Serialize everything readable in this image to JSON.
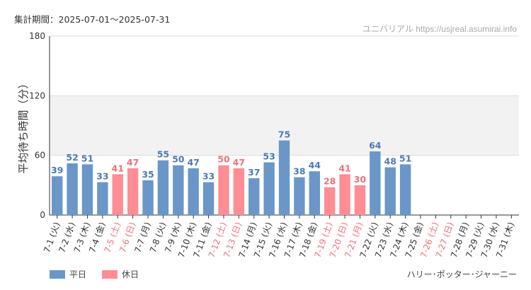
{
  "header": {
    "period_label": "集計期間：2025-07-01～2025-07-31",
    "credit": "ユニバリアル https://usjreal.asumirai.info"
  },
  "footer": {
    "attraction": "ハリー･ポッター･ジャーニー"
  },
  "colors": {
    "weekday": "#6a97c7",
    "holiday": "#ff8d94",
    "weekday_text": "#4a7bb5",
    "holiday_text": "#f07078",
    "band": "#f2f2f2"
  },
  "chart_data": {
    "type": "bar",
    "ylabel": "平均待ち時間（分）",
    "ylim": [
      0,
      180
    ],
    "yticks": [
      0,
      60,
      120,
      180
    ],
    "shaded_band": [
      60,
      120
    ],
    "legend": [
      {
        "label": "平日",
        "kind": "weekday"
      },
      {
        "label": "休日",
        "kind": "holiday"
      }
    ],
    "categories": [
      {
        "label": "7-1 (火)",
        "value": 39,
        "holiday": false
      },
      {
        "label": "7-2 (水)",
        "value": 52,
        "holiday": false
      },
      {
        "label": "7-3 (木)",
        "value": 51,
        "holiday": false
      },
      {
        "label": "7-4 (金)",
        "value": 33,
        "holiday": false
      },
      {
        "label": "7-5 (土)",
        "value": 41,
        "holiday": true
      },
      {
        "label": "7-6 (日)",
        "value": 47,
        "holiday": true
      },
      {
        "label": "7-7 (月)",
        "value": 35,
        "holiday": false
      },
      {
        "label": "7-8 (火)",
        "value": 55,
        "holiday": false
      },
      {
        "label": "7-9 (水)",
        "value": 50,
        "holiday": false
      },
      {
        "label": "7-10 (木)",
        "value": 47,
        "holiday": false
      },
      {
        "label": "7-11 (金)",
        "value": 33,
        "holiday": false
      },
      {
        "label": "7-12 (土)",
        "value": 50,
        "holiday": true
      },
      {
        "label": "7-13 (日)",
        "value": 47,
        "holiday": true
      },
      {
        "label": "7-14 (月)",
        "value": 37,
        "holiday": false
      },
      {
        "label": "7-15 (火)",
        "value": 53,
        "holiday": false
      },
      {
        "label": "7-16 (水)",
        "value": 75,
        "holiday": false
      },
      {
        "label": "7-17 (木)",
        "value": 38,
        "holiday": false
      },
      {
        "label": "7-18 (金)",
        "value": 44,
        "holiday": false
      },
      {
        "label": "7-19 (土)",
        "value": 28,
        "holiday": true
      },
      {
        "label": "7-20 (日)",
        "value": 41,
        "holiday": true
      },
      {
        "label": "7-21 (月)",
        "value": 30,
        "holiday": true
      },
      {
        "label": "7-22 (火)",
        "value": 64,
        "holiday": false
      },
      {
        "label": "7-23 (水)",
        "value": 48,
        "holiday": false
      },
      {
        "label": "7-24 (木)",
        "value": 51,
        "holiday": false
      },
      {
        "label": "7-25 (金)",
        "value": null,
        "holiday": false
      },
      {
        "label": "7-26 (土)",
        "value": null,
        "holiday": true
      },
      {
        "label": "7-27 (日)",
        "value": null,
        "holiday": true
      },
      {
        "label": "7-28 (月)",
        "value": null,
        "holiday": false
      },
      {
        "label": "7-29 (火)",
        "value": null,
        "holiday": false
      },
      {
        "label": "7-30 (水)",
        "value": null,
        "holiday": false
      },
      {
        "label": "7-31 (木)",
        "value": null,
        "holiday": false
      }
    ]
  }
}
